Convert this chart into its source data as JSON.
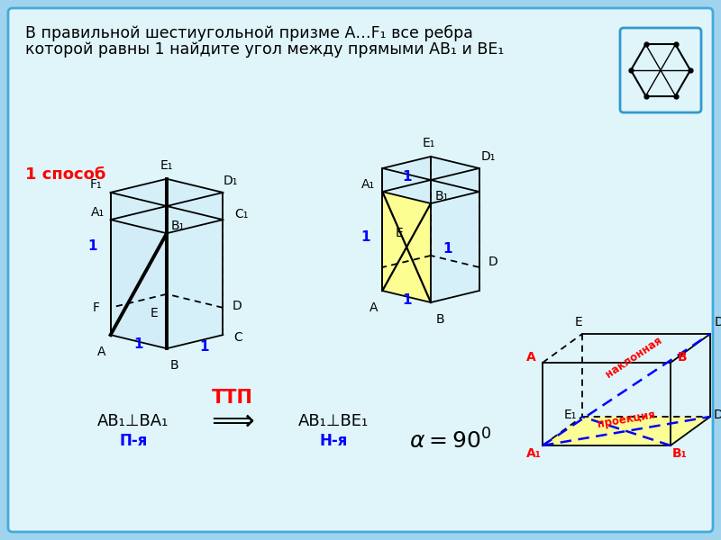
{
  "title1": "В правильной шестиугольной призме А…F₁ все ребра",
  "title2": "которой равны 1 найдите угол между прямыми АВ₁ и ВЕ₁",
  "method": "1 способ",
  "ttp": "ТТП",
  "formula_left": "AB₁⊥BA₁",
  "sublabel_left": "П-я",
  "formula_right": "AB₁⊥BE₁",
  "sublabel_right": "Н-я",
  "naklonnaya": "наклонная",
  "proekcia": "проекция",
  "bg_outer": "#a0d4ee",
  "bg_inner": "#dff5fa",
  "yellow": "#ffff88",
  "lblue": "#c8e8f8",
  "edge_lw": 1.3,
  "bold_lw": 2.8
}
